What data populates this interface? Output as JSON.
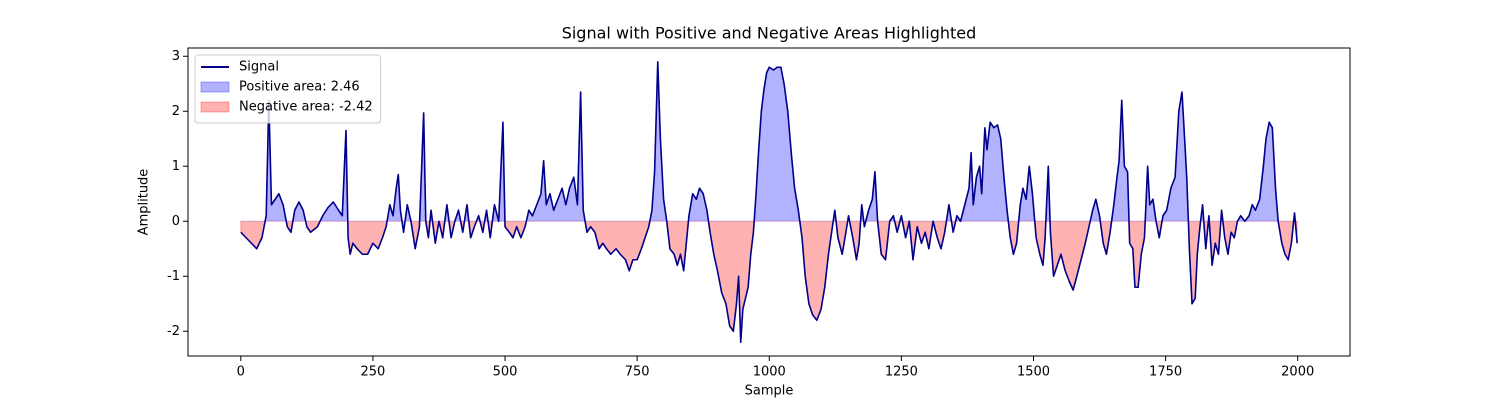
{
  "chart_data": {
    "type": "line",
    "title": "Signal with Positive and Negative Areas Highlighted",
    "xlabel": "Sample",
    "ylabel": "Amplitude",
    "xlim": [
      -99.95,
      2098.95
    ],
    "ylim": [
      -2.45,
      3.15
    ],
    "xticks": [
      0,
      250,
      500,
      750,
      1000,
      1250,
      1500,
      1750,
      2000
    ],
    "yticks": [
      -2,
      -1,
      0,
      1,
      2,
      3
    ],
    "legend": "upper left",
    "baseline": 0,
    "x": [
      0,
      10,
      20,
      30,
      40,
      48,
      53,
      58,
      65,
      72,
      80,
      88,
      95,
      102,
      110,
      118,
      125,
      132,
      145,
      155,
      165,
      175,
      185,
      192,
      199,
      203,
      207,
      212,
      220,
      230,
      240,
      250,
      260,
      268,
      275,
      282,
      288,
      294,
      298,
      302,
      308,
      315,
      322,
      330,
      338,
      346,
      350,
      355,
      360,
      368,
      375,
      382,
      390,
      398,
      405,
      412,
      420,
      428,
      435,
      442,
      450,
      458,
      465,
      472,
      480,
      488,
      496,
      500,
      508,
      515,
      522,
      530,
      538,
      545,
      552,
      560,
      568,
      573,
      578,
      585,
      592,
      600,
      608,
      615,
      622,
      630,
      637,
      643,
      648,
      655,
      662,
      670,
      678,
      685,
      692,
      700,
      710,
      718,
      728,
      735,
      742,
      750,
      758,
      765,
      772,
      778,
      783,
      789,
      794,
      800,
      806,
      812,
      820,
      826,
      832,
      838,
      843,
      848,
      855,
      862,
      868,
      875,
      882,
      888,
      895,
      902,
      910,
      918,
      925,
      932,
      938,
      942,
      946,
      950,
      955,
      960,
      965,
      970,
      975,
      980,
      985,
      990,
      995,
      1000,
      1008,
      1015,
      1022,
      1028,
      1035,
      1042,
      1048,
      1055,
      1062,
      1068,
      1075,
      1082,
      1090,
      1098,
      1105,
      1112,
      1118,
      1124,
      1130,
      1138,
      1145,
      1150,
      1158,
      1165,
      1170,
      1175,
      1180,
      1188,
      1195,
      1200,
      1205,
      1212,
      1220,
      1228,
      1235,
      1242,
      1250,
      1258,
      1265,
      1272,
      1280,
      1288,
      1295,
      1302,
      1310,
      1318,
      1325,
      1332,
      1340,
      1348,
      1355,
      1362,
      1370,
      1378,
      1382,
      1386,
      1392,
      1398,
      1402,
      1408,
      1412,
      1418,
      1425,
      1432,
      1438,
      1445,
      1450,
      1456,
      1462,
      1468,
      1475,
      1480,
      1486,
      1492,
      1498,
      1505,
      1512,
      1518,
      1522,
      1528,
      1532,
      1538,
      1545,
      1552,
      1560,
      1568,
      1575,
      1582,
      1590,
      1598,
      1605,
      1612,
      1618,
      1625,
      1632,
      1638,
      1645,
      1652,
      1658,
      1662,
      1667,
      1672,
      1678,
      1682,
      1688,
      1692,
      1698,
      1704,
      1710,
      1716,
      1720,
      1726,
      1732,
      1738,
      1745,
      1752,
      1760,
      1768,
      1775,
      1781,
      1786,
      1790,
      1795,
      1800,
      1806,
      1810,
      1815,
      1820,
      1826,
      1832,
      1838,
      1844,
      1850,
      1856,
      1862,
      1868,
      1874,
      1880,
      1886,
      1892,
      1900,
      1908,
      1914,
      1920,
      1928,
      1935,
      1940,
      1946,
      1952,
      1958,
      1963,
      1970,
      1976,
      1982,
      1988,
      1994,
      1999
    ],
    "series": [
      {
        "name": "Signal",
        "color": "#00008b",
        "values": [
          -0.2,
          -0.3,
          -0.4,
          -0.5,
          -0.3,
          0.1,
          2.2,
          0.3,
          0.4,
          0.5,
          0.3,
          -0.1,
          -0.2,
          0.2,
          0.35,
          0.2,
          -0.1,
          -0.2,
          -0.1,
          0.1,
          0.25,
          0.35,
          0.2,
          0.1,
          1.65,
          -0.3,
          -0.6,
          -0.4,
          -0.5,
          -0.6,
          -0.6,
          -0.4,
          -0.5,
          -0.3,
          -0.1,
          0.3,
          0.1,
          0.6,
          0.85,
          0.2,
          -0.2,
          0.3,
          0.0,
          -0.5,
          -0.1,
          1.97,
          0.0,
          -0.3,
          0.2,
          -0.4,
          0.0,
          -0.3,
          0.3,
          -0.3,
          0.0,
          0.2,
          -0.2,
          0.3,
          -0.3,
          -0.1,
          0.1,
          -0.2,
          0.2,
          -0.3,
          0.3,
          0.0,
          1.8,
          -0.1,
          -0.2,
          -0.3,
          -0.1,
          -0.3,
          -0.1,
          0.2,
          0.1,
          0.3,
          0.5,
          1.1,
          0.3,
          0.5,
          0.2,
          0.4,
          0.6,
          0.3,
          0.6,
          0.8,
          0.3,
          2.35,
          0.2,
          -0.2,
          -0.1,
          -0.2,
          -0.5,
          -0.4,
          -0.5,
          -0.6,
          -0.5,
          -0.6,
          -0.7,
          -0.9,
          -0.7,
          -0.7,
          -0.5,
          -0.3,
          -0.1,
          0.2,
          0.9,
          2.9,
          1.5,
          0.4,
          0.0,
          -0.5,
          -0.6,
          -0.8,
          -0.6,
          -0.9,
          -0.4,
          0.1,
          0.5,
          0.4,
          0.6,
          0.5,
          0.2,
          -0.2,
          -0.6,
          -0.9,
          -1.3,
          -1.5,
          -1.9,
          -2.0,
          -1.5,
          -1.0,
          -2.2,
          -1.6,
          -1.4,
          -1.2,
          -0.6,
          -0.2,
          0.5,
          1.3,
          2.0,
          2.4,
          2.7,
          2.8,
          2.75,
          2.8,
          2.8,
          2.5,
          2.0,
          1.2,
          0.6,
          0.2,
          -0.3,
          -1.0,
          -1.5,
          -1.7,
          -1.8,
          -1.6,
          -1.2,
          -0.6,
          -0.2,
          0.2,
          -0.3,
          -0.6,
          -0.2,
          0.1,
          -0.3,
          -0.7,
          -0.4,
          0.3,
          -0.1,
          0.2,
          0.4,
          0.9,
          0.0,
          -0.6,
          -0.7,
          0.0,
          0.1,
          -0.2,
          0.1,
          -0.3,
          0.0,
          -0.7,
          -0.1,
          -0.4,
          -0.2,
          -0.5,
          0.0,
          -0.3,
          -0.5,
          -0.2,
          0.3,
          -0.2,
          0.1,
          0.0,
          0.3,
          0.6,
          1.25,
          0.3,
          0.8,
          1.0,
          0.5,
          1.7,
          1.3,
          1.8,
          1.7,
          1.75,
          1.5,
          0.7,
          0.2,
          -0.3,
          -0.6,
          -0.4,
          0.3,
          0.6,
          0.4,
          1.0,
          0.5,
          -0.3,
          -0.6,
          -0.8,
          -0.3,
          1.0,
          -0.2,
          -1.0,
          -0.8,
          -0.6,
          -0.9,
          -1.1,
          -1.25,
          -1.0,
          -0.7,
          -0.4,
          -0.1,
          0.2,
          0.4,
          0.1,
          -0.4,
          -0.6,
          -0.2,
          0.3,
          0.8,
          1.1,
          2.2,
          1.0,
          0.9,
          -0.4,
          -0.5,
          -1.2,
          -1.2,
          -0.6,
          -0.3,
          1.0,
          0.3,
          0.4,
          0.0,
          -0.3,
          0.1,
          0.2,
          0.6,
          0.8,
          2.0,
          2.35,
          1.5,
          0.8,
          -0.5,
          -1.5,
          -1.4,
          -0.6,
          -0.1,
          0.3,
          -0.5,
          0.1,
          -0.8,
          -0.4,
          -0.6,
          0.2,
          -0.3,
          -0.6,
          -0.2,
          -0.3,
          0.0,
          0.1,
          0.0,
          0.1,
          0.3,
          0.2,
          0.4,
          1.0,
          1.5,
          1.8,
          1.7,
          0.6,
          0.0,
          -0.4,
          -0.6,
          -0.7,
          -0.4,
          0.15,
          -0.4
        ]
      }
    ],
    "areas": [
      {
        "name": "Positive area: 2.46",
        "color": "blue",
        "alpha": 0.3
      },
      {
        "name": "Negative area: -2.42",
        "color": "red",
        "alpha": 0.3
      }
    ]
  }
}
